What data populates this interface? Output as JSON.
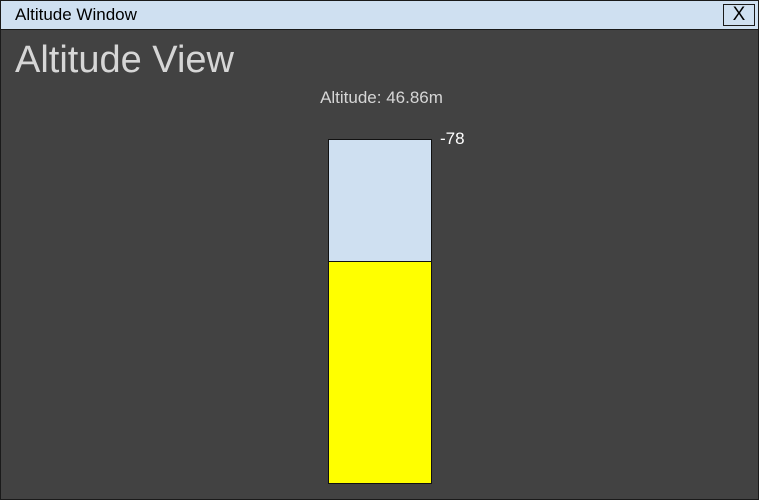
{
  "window": {
    "title": "Altitude Window",
    "close_label": "X"
  },
  "main": {
    "heading": "Altitude View",
    "altitude_text": "Altitude: 46.86m"
  },
  "gauge": {
    "limit_label": "-78",
    "fill_fraction": 0.645,
    "fill_color": "#ffff00",
    "empty_color": "#cfe0f1"
  },
  "colors": {
    "titlebar": "#cfe0f1",
    "background": "#424242"
  }
}
